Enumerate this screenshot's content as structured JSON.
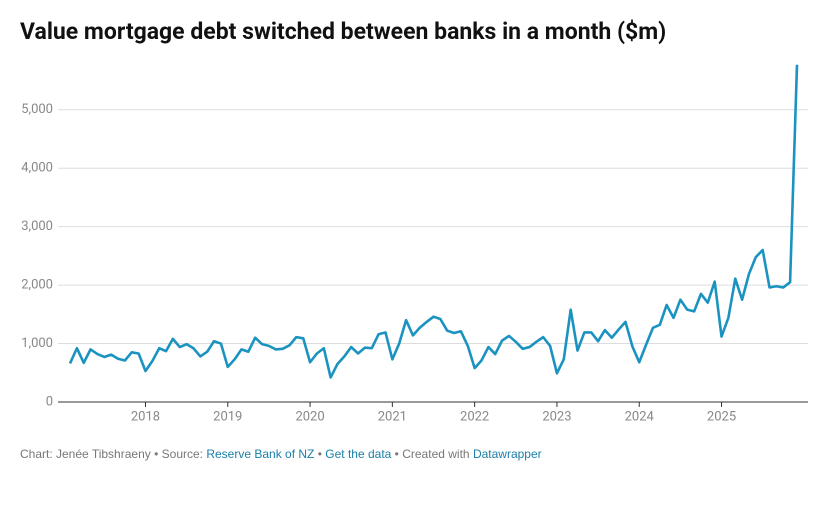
{
  "chart_data": {
    "type": "line",
    "title": "Value mortgage debt switched between banks in a month ($m)",
    "x": [
      2017.083,
      2017.167,
      2017.25,
      2017.333,
      2017.417,
      2017.5,
      2017.583,
      2017.667,
      2017.75,
      2017.833,
      2017.917,
      2018,
      2018.083,
      2018.167,
      2018.25,
      2018.333,
      2018.417,
      2018.5,
      2018.583,
      2018.667,
      2018.75,
      2018.833,
      2018.917,
      2019,
      2019.083,
      2019.167,
      2019.25,
      2019.333,
      2019.417,
      2019.5,
      2019.583,
      2019.667,
      2019.75,
      2019.833,
      2019.917,
      2020,
      2020.083,
      2020.167,
      2020.25,
      2020.333,
      2020.417,
      2020.5,
      2020.583,
      2020.667,
      2020.75,
      2020.833,
      2020.917,
      2021,
      2021.083,
      2021.167,
      2021.25,
      2021.333,
      2021.417,
      2021.5,
      2021.583,
      2021.667,
      2021.75,
      2021.833,
      2021.917,
      2022,
      2022.083,
      2022.167,
      2022.25,
      2022.333,
      2022.417,
      2022.5,
      2022.583,
      2022.667,
      2022.75,
      2022.833,
      2022.917,
      2023,
      2023.083,
      2023.167,
      2023.25,
      2023.333,
      2023.417,
      2023.5,
      2023.583,
      2023.667,
      2023.75,
      2023.833,
      2023.917,
      2024,
      2024.083,
      2024.167,
      2024.25,
      2024.333,
      2024.417,
      2024.5,
      2024.583,
      2024.667,
      2024.75,
      2024.833,
      2024.917,
      2025,
      2025.083,
      2025.167,
      2025.25,
      2025.333,
      2025.417,
      2025.5,
      2025.583,
      2025.667,
      2025.75,
      2025.833,
      2025.917
    ],
    "series": [
      {
        "color": "#1b93c0",
        "values": [
          660,
          920,
          670,
          900,
          820,
          770,
          810,
          740,
          710,
          850,
          830,
          530,
          700,
          920,
          870,
          1080,
          940,
          990,
          920,
          780,
          860,
          1040,
          1000,
          600,
          730,
          900,
          860,
          1100,
          990,
          960,
          900,
          910,
          970,
          1110,
          1090,
          680,
          830,
          920,
          420,
          650,
          780,
          940,
          830,
          930,
          920,
          1160,
          1190,
          730,
          1000,
          1400,
          1140,
          1270,
          1370,
          1460,
          1420,
          1220,
          1180,
          1210,
          960,
          580,
          710,
          940,
          820,
          1050,
          1130,
          1030,
          910,
          940,
          1030,
          1110,
          960,
          490,
          730,
          1580,
          880,
          1190,
          1190,
          1040,
          1230,
          1100,
          1240,
          1370,
          950,
          680,
          980,
          1270,
          1320,
          1660,
          1440,
          1750,
          1580,
          1550,
          1850,
          1700,
          2060,
          1120,
          1440,
          2110,
          1750,
          2190,
          2480,
          2600,
          1960,
          1980,
          1960,
          2050,
          5770
        ]
      }
    ],
    "xlim": [
      2017.083,
      2025.917
    ],
    "xticks": [
      2018,
      2019,
      2020,
      2021,
      2022,
      2023,
      2024,
      2025
    ],
    "ylim": [
      0,
      5800
    ],
    "yticks": [
      0,
      {
        "value": 1000,
        "label": "1,000"
      },
      {
        "value": 2000,
        "label": "2,000"
      },
      {
        "value": 3000,
        "label": "3,000"
      },
      {
        "value": 4000,
        "label": "4,000"
      },
      {
        "value": 5000,
        "label": "5,000"
      }
    ],
    "grid": true,
    "footer": {
      "byline": "Chart: Jenée Tibshraeny",
      "separator": "•",
      "source_label": "Source:",
      "source": "Reserve Bank of NZ",
      "get_data": "Get the data",
      "created_with": "Created with",
      "tool": "Datawrapper"
    }
  }
}
